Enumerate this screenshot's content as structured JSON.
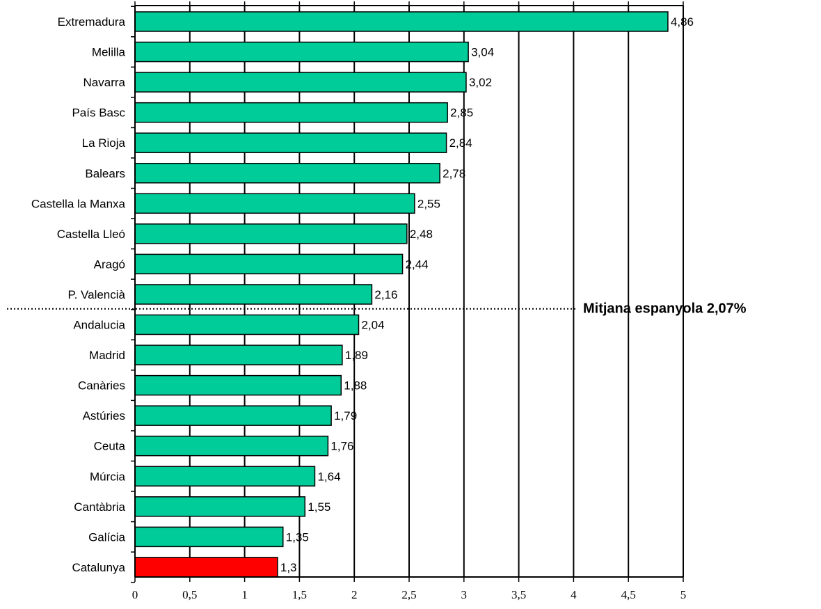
{
  "chart_data": {
    "type": "bar",
    "orientation": "horizontal",
    "categories": [
      "Extremadura",
      "Melilla",
      "Navarra",
      "País Basc",
      "La Rioja",
      "Balears",
      "Castella la Manxa",
      "Castella Lleó",
      "Aragó",
      "P. Valencià",
      "Andalucia",
      "Madrid",
      "Canàries",
      "Astúries",
      "Ceuta",
      "Múrcia",
      "Cantàbria",
      "Galícia",
      "Catalunya"
    ],
    "values": [
      4.86,
      3.04,
      3.02,
      2.85,
      2.84,
      2.78,
      2.55,
      2.48,
      2.44,
      2.16,
      2.04,
      1.89,
      1.88,
      1.79,
      1.76,
      1.64,
      1.55,
      1.35,
      1.3
    ],
    "value_labels": [
      "4,86",
      "3,04",
      "3,02",
      "2,85",
      "2,84",
      "2,78",
      "2,55",
      "2,48",
      "2,44",
      "2,16",
      "2,04",
      "1,89",
      "1,88",
      "1,79",
      "1,76",
      "1,64",
      "1,55",
      "1,35",
      "1,3"
    ],
    "xlim": [
      0,
      5
    ],
    "xticks": [
      0,
      0.5,
      1,
      1.5,
      2,
      2.5,
      3,
      3.5,
      4,
      4.5,
      5
    ],
    "xtick_labels": [
      "0",
      "0,5",
      "1",
      "1,5",
      "2",
      "2,5",
      "3",
      "3,5",
      "4",
      "4,5",
      "5"
    ],
    "grid": "vertical",
    "bar_color": "#00CC99",
    "highlight_category": "Catalunya",
    "highlight_color": "#FF0000",
    "reference_line": {
      "label": "Mitjana espanyola   2,07%"
    }
  }
}
